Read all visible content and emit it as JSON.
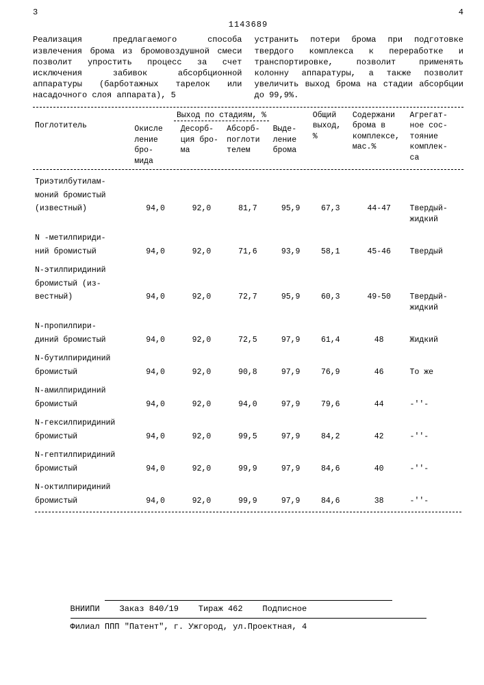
{
  "doc_id": "1143689",
  "page_left_num": "3",
  "page_right_num": "4",
  "mid_num_left": "5",
  "left_paragraph": "Реализация предлагаемого способа извлечения брома из бромовоздушной смеси позволит упростить процесс за счет исключения забивок абсорбционной аппаратуры (барботажных тарелок или насадочного слоя аппарата),",
  "right_paragraph": "устранить потери брома при подготовке твердого комплекса к переработке и транспортировке, позволит применять колонну аппаратуры, а также позволит увеличить выход брома на стадии абсорбции до 99,9%.",
  "table": {
    "headers": {
      "absorber": "Поглотитель",
      "stages_title": "Выход по стадиям, %",
      "stage1": "Окисле\nление бро-\nмида",
      "stage2": "Десорб-\nция бро-\nма",
      "stage3": "Абсорб-\nпоглоти\nтелем",
      "stage4": "Выде-\nление\nброма",
      "total": "Общий\nвыход,\n%",
      "content": "Содержани\nброма в\nкомплексе,\nмас.%",
      "state": "Агрегат-\nное сос-\nтояние\nкомплек-\nса"
    },
    "rows": [
      {
        "name_l1": "Триэтилбутилам-",
        "name_l2": "моний бромистый",
        "name_l3": "(известный)",
        "c1": "94,0",
        "c2": "92,0",
        "c3": "81,7",
        "c4": "95,9",
        "c5": "67,3",
        "c6": "44-47",
        "c7": "Твердый-\nжидкий"
      },
      {
        "name_l1": "N -метилпириди-",
        "name_l2": "ний бромистый",
        "name_l3": "",
        "c1": "94,0",
        "c2": "92,0",
        "c3": "71,6",
        "c4": "93,9",
        "c5": "58,1",
        "c6": "45-46",
        "c7": "Твердый"
      },
      {
        "name_l1": "N-этилпиридиний",
        "name_l2": "бромистый (из-",
        "name_l3": "вестный)",
        "c1": "94,0",
        "c2": "92,0",
        "c3": "72,7",
        "c4": "95,9",
        "c5": "60,3",
        "c6": "49-50",
        "c7": "Твердый-\nжидкий"
      },
      {
        "name_l1": "N-пропилпири-",
        "name_l2": "диний бромистый",
        "name_l3": "",
        "c1": "94,0",
        "c2": "92,0",
        "c3": "72,5",
        "c4": "97,9",
        "c5": "61,4",
        "c6": "48",
        "c7": "Жидкий"
      },
      {
        "name_l1": "N-бутилпиридиний",
        "name_l2": "бромистый",
        "name_l3": "",
        "c1": "94,0",
        "c2": "92,0",
        "c3": "90,8",
        "c4": "97,9",
        "c5": "76,9",
        "c6": "46",
        "c7": "То же"
      },
      {
        "name_l1": "N-амилпиридиний",
        "name_l2": "бромистый",
        "name_l3": "",
        "c1": "94,0",
        "c2": "92,0",
        "c3": "94,0",
        "c4": "97,9",
        "c5": "79,6",
        "c6": "44",
        "c7": "-''-"
      },
      {
        "name_l1": "N-гексилпиридиний",
        "name_l2": "бромистый",
        "name_l3": "",
        "c1": "94,0",
        "c2": "92,0",
        "c3": "99,5",
        "c4": "97,9",
        "c5": "84,2",
        "c6": "42",
        "c7": "-''-"
      },
      {
        "name_l1": "N-гептилпиридиний",
        "name_l2": "бромистый",
        "name_l3": "",
        "c1": "94,0",
        "c2": "92,0",
        "c3": "99,9",
        "c4": "97,9",
        "c5": "84,6",
        "c6": "40",
        "c7": "-''-"
      },
      {
        "name_l1": "N-октилпиридиний",
        "name_l2": "бромистый",
        "name_l3": "",
        "c1": "94,0",
        "c2": "92,0",
        "c3": "99,9",
        "c4": "97,9",
        "c5": "84,6",
        "c6": "38",
        "c7": "-''-"
      }
    ]
  },
  "footer": {
    "org": "ВНИИПИ",
    "order": "Заказ 840/19",
    "tirazh": "Тираж 462",
    "subs": "Подписное",
    "address": "Филиал ППП \"Патент\", г. Ужгород, ул.Проектная, 4"
  }
}
